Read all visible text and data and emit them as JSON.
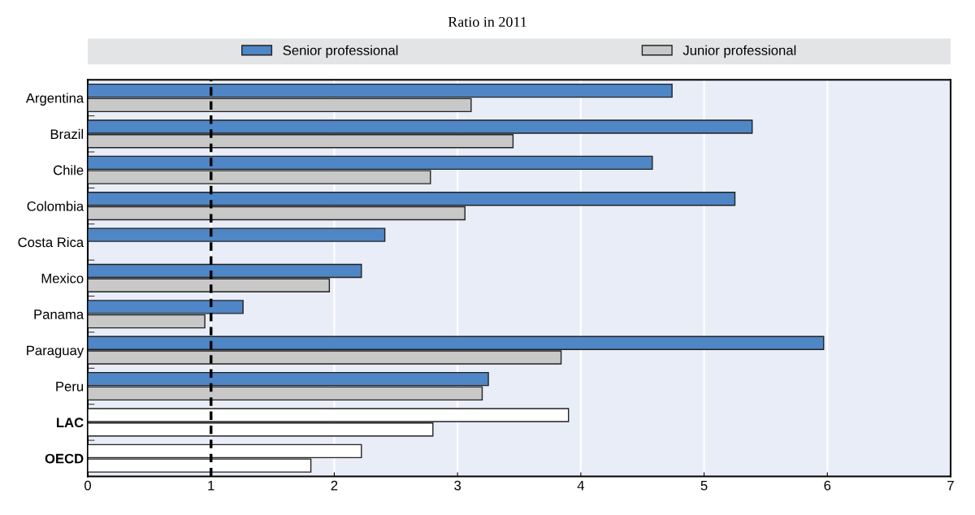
{
  "chart_data": {
    "type": "bar",
    "orientation": "horizontal",
    "subtitle": "Ratio in 2011",
    "categories": [
      "Argentina",
      "Brazil",
      "Chile",
      "Colombia",
      "Costa Rica",
      "Mexico",
      "Panama",
      "Paraguay",
      "Peru",
      "LAC",
      "OECD"
    ],
    "series": [
      {
        "name": "Senior professional",
        "color": "#4e86c6",
        "colors": [
          "#4e86c6",
          "#4e86c6",
          "#4e86c6",
          "#4e86c6",
          "#4e86c6",
          "#4e86c6",
          "#4e86c6",
          "#4e86c6",
          "#4e86c6",
          "#ffffff",
          "#ffffff"
        ],
        "values": [
          4.74,
          5.39,
          4.58,
          5.25,
          2.41,
          2.22,
          1.26,
          5.97,
          3.25,
          3.9,
          2.22
        ]
      },
      {
        "name": "Junior professional",
        "color": "#c8c8c8",
        "colors": [
          "#c8c8c8",
          "#c8c8c8",
          "#c8c8c8",
          "#c8c8c8",
          "#c8c8c8",
          "#c8c8c8",
          "#c8c8c8",
          "#c8c8c8",
          "#c8c8c8",
          "#ffffff",
          "#ffffff"
        ],
        "values": [
          3.11,
          3.45,
          2.78,
          3.06,
          null,
          1.96,
          0.95,
          3.84,
          3.2,
          2.8,
          1.81
        ]
      }
    ],
    "xlim": [
      0,
      7
    ],
    "xticks": [
      0,
      1,
      2,
      3,
      4,
      5,
      6,
      7
    ],
    "ref_lines": [
      {
        "axis": "x",
        "value": 1,
        "line_style": "dashed",
        "color": "#000000"
      }
    ],
    "grid": "x",
    "legend": "top"
  }
}
